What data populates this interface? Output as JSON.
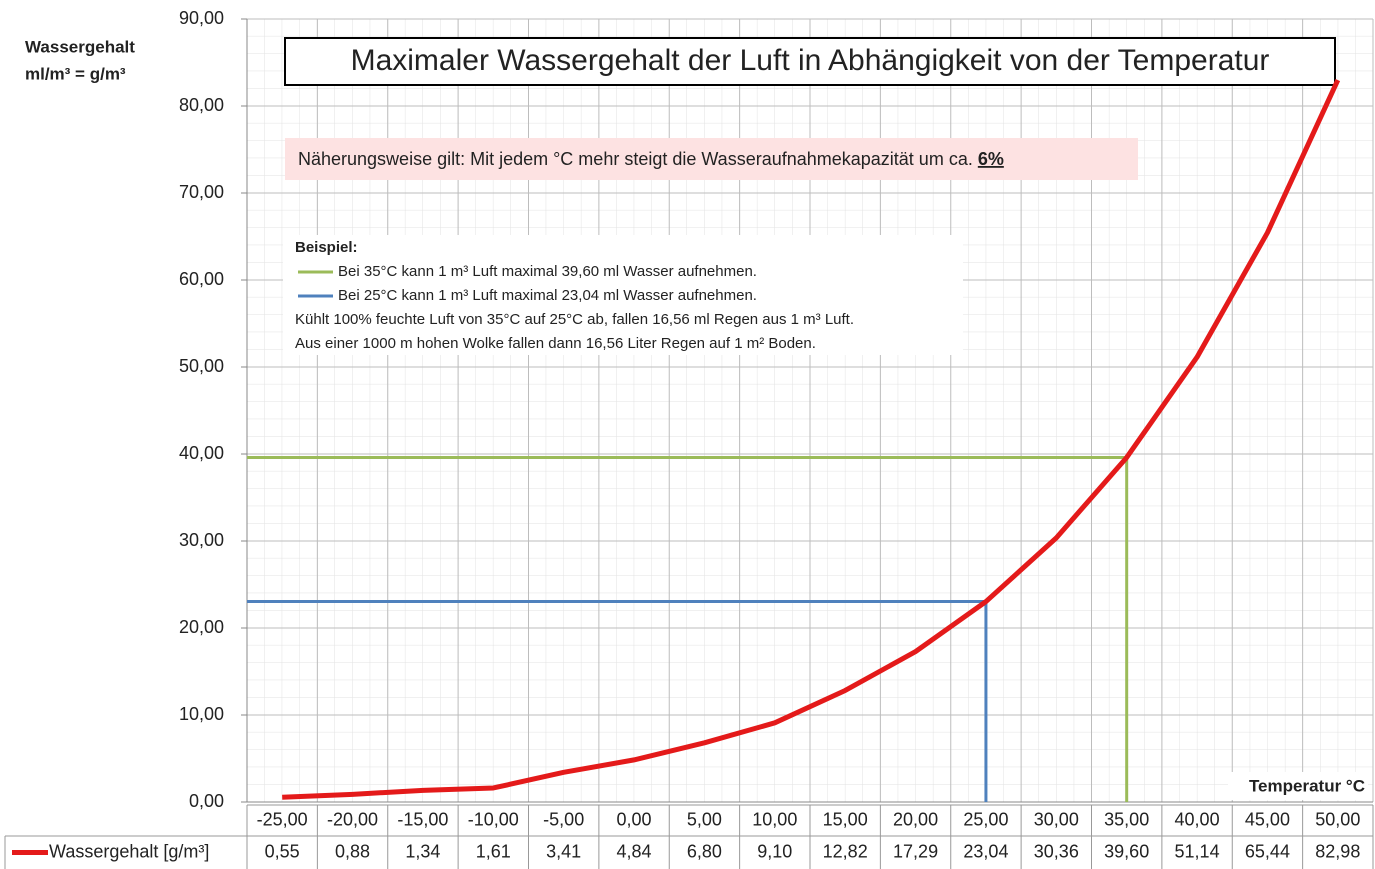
{
  "chart_data": {
    "type": "line",
    "title": "Maximaler Wassergehalt der Luft in Abhängigkeit von der Temperatur",
    "y_axis_label": [
      "Wassergehalt",
      "ml/m³ = g/m³"
    ],
    "x_axis_label": "Temperatur °C",
    "note": {
      "text": "Näherungsweise gilt: Mit jedem °C mehr steigt die Wasseraufnahmekapazität  um ca. ",
      "emphasis": "6%"
    },
    "example": {
      "heading": "Beispiel:",
      "lines": [
        "Bei 35°C kann 1 m³ Luft maximal 39,60 ml Wasser aufnehmen.",
        "Bei 25°C kann 1 m³ Luft maximal 23,04 ml Wasser aufnehmen.",
        "Kühlt  100% feuchte Luft von 35°C auf 25°C ab, fallen 16,56 ml Regen aus 1 m³ Luft.",
        "Aus einer 1000 m hohen Wolke fallen dann 16,56 Liter Regen auf 1 m² Boden."
      ]
    },
    "x": [
      -25,
      -20,
      -15,
      -10,
      -5,
      0,
      5,
      10,
      15,
      20,
      25,
      30,
      35,
      40,
      45,
      50
    ],
    "series": [
      {
        "name": "Wassergehalt  [g/m³]",
        "color": "#e41a1a",
        "values": [
          0.55,
          0.88,
          1.34,
          1.61,
          3.41,
          4.84,
          6.8,
          9.1,
          12.82,
          17.29,
          23.04,
          30.36,
          39.6,
          51.14,
          65.44,
          82.98
        ],
        "value_labels": [
          "0,55",
          "0,88",
          "1,34",
          "1,61",
          "3,41",
          "4,84",
          "6,80",
          "9,10",
          "12,82",
          "17,29",
          "23,04",
          "30,36",
          "39,60",
          "51,14",
          "65,44",
          "82,98"
        ]
      }
    ],
    "reference_lines": [
      {
        "color": "#9bbb59",
        "x": 35,
        "y": 39.6
      },
      {
        "color": "#4f81bd",
        "x": 25,
        "y": 23.04
      }
    ],
    "xlim": [
      -27.5,
      52.5
    ],
    "xticks": [
      {
        "value": -25,
        "label": "-25,00"
      },
      {
        "value": -20,
        "label": "-20,00"
      },
      {
        "value": -15,
        "label": "-15,00"
      },
      {
        "value": -10,
        "label": "-10,00"
      },
      {
        "value": -5,
        "label": "-5,00"
      },
      {
        "value": 0,
        "label": "0,00"
      },
      {
        "value": 5,
        "label": "5,00"
      },
      {
        "value": 10,
        "label": "10,00"
      },
      {
        "value": 15,
        "label": "15,00"
      },
      {
        "value": 20,
        "label": "20,00"
      },
      {
        "value": 25,
        "label": "25,00"
      },
      {
        "value": 30,
        "label": "30,00"
      },
      {
        "value": 35,
        "label": "35,00"
      },
      {
        "value": 40,
        "label": "40,00"
      },
      {
        "value": 45,
        "label": "45,00"
      },
      {
        "value": 50,
        "label": "50,00"
      }
    ],
    "ylim": [
      0,
      90
    ],
    "yticks": [
      {
        "value": 0,
        "label": "0,00"
      },
      {
        "value": 10,
        "label": "10,00"
      },
      {
        "value": 20,
        "label": "20,00"
      },
      {
        "value": 30,
        "label": "30,00"
      },
      {
        "value": 40,
        "label": "40,00"
      },
      {
        "value": 50,
        "label": "50,00"
      },
      {
        "value": 60,
        "label": "60,00"
      },
      {
        "value": 70,
        "label": "70,00"
      },
      {
        "value": 80,
        "label": "80,00"
      },
      {
        "value": 90,
        "label": "90,00"
      }
    ],
    "grid": true
  }
}
